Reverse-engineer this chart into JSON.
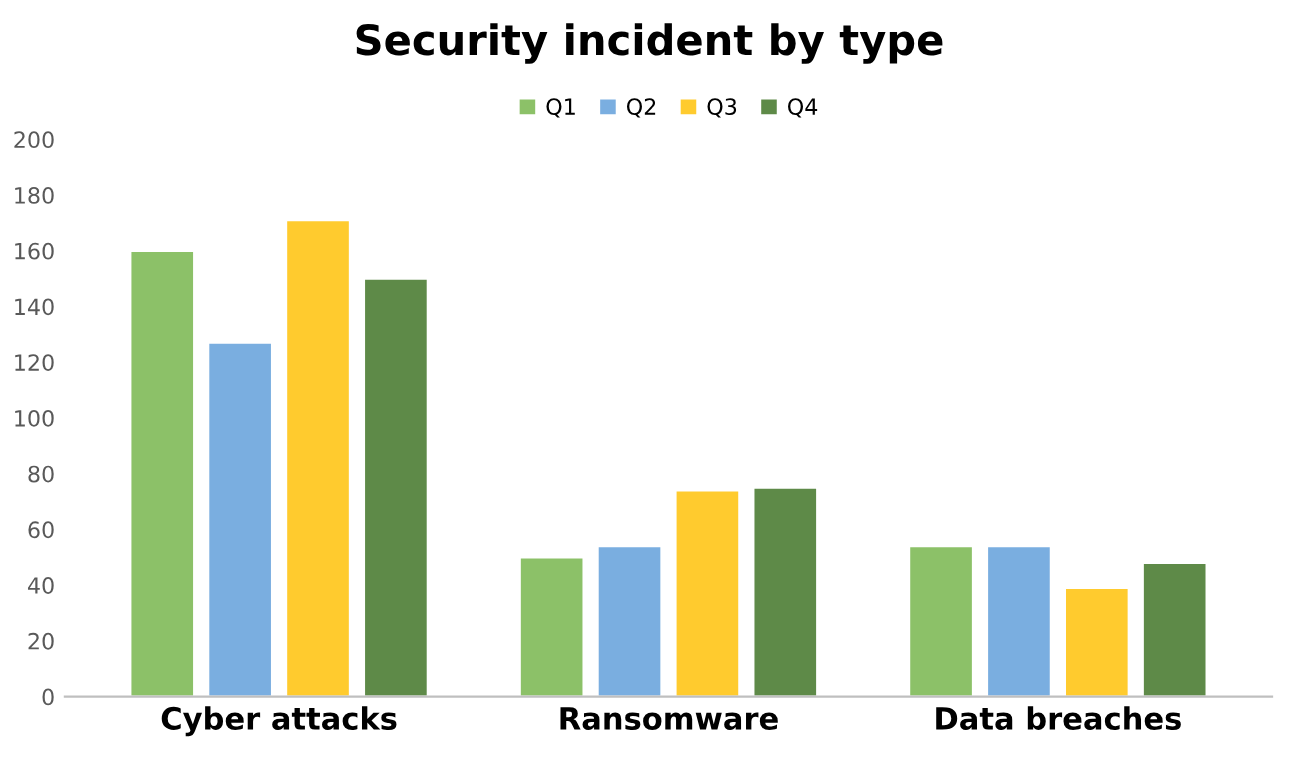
{
  "chart_data": {
    "type": "bar",
    "title": "Security incident by type",
    "categories": [
      "Cyber attacks",
      "Ransomware",
      "Data breaches"
    ],
    "series": [
      {
        "name": "Q1",
        "color": "#8cc168",
        "values": [
          160,
          50,
          54
        ]
      },
      {
        "name": "Q2",
        "color": "#7aaee0",
        "values": [
          127,
          54,
          54
        ]
      },
      {
        "name": "Q3",
        "color": "#ffcb2e",
        "values": [
          171,
          74,
          39
        ]
      },
      {
        "name": "Q4",
        "color": "#5e8a48",
        "values": [
          150,
          75,
          48
        ]
      }
    ],
    "ylim": [
      0,
      200
    ],
    "yticks": [
      0,
      20,
      40,
      60,
      80,
      100,
      120,
      140,
      160,
      180,
      200
    ],
    "grid": false,
    "legend": "top"
  }
}
